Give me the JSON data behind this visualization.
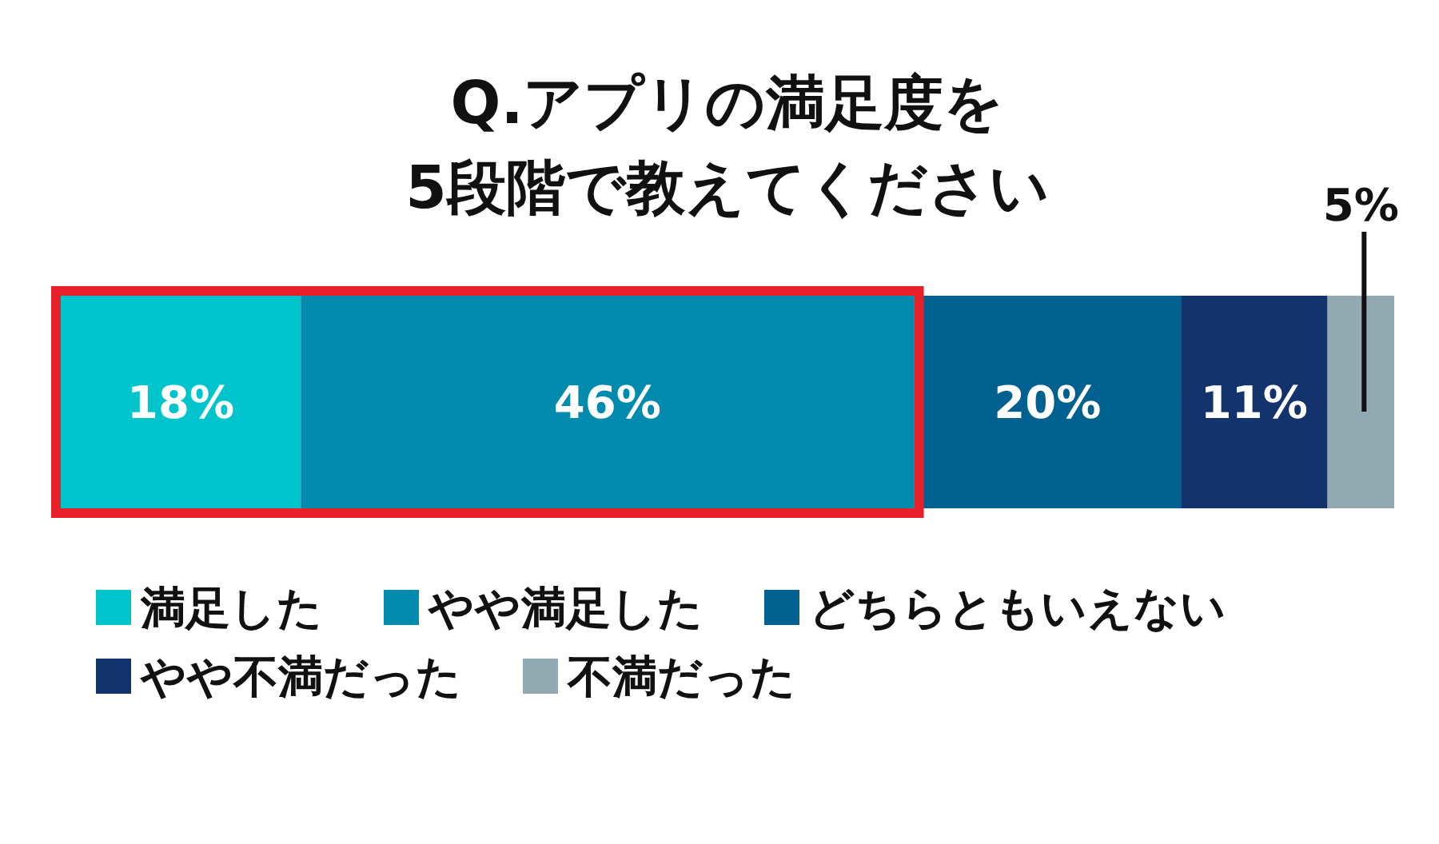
{
  "chart_data": {
    "type": "bar",
    "title": "Q.アプリの満足度を\n5段階で教えてください",
    "orientation": "horizontal",
    "stacked": true,
    "categories": [
      null
    ],
    "series": [
      {
        "name": "満足した",
        "color": "#00c4cc",
        "values": [
          18
        ],
        "value_labels": [
          "18%"
        ]
      },
      {
        "name": "やや満足した",
        "color": "#008aae",
        "values": [
          46
        ],
        "value_labels": [
          "46%"
        ]
      },
      {
        "name": "どちらともいえない",
        "color": "#006090",
        "values": [
          20
        ],
        "value_labels": [
          "20%"
        ]
      },
      {
        "name": "やや不満だった",
        "color": "#12336b",
        "values": [
          11
        ],
        "value_labels": [
          "11%"
        ]
      },
      {
        "name": "不満だった",
        "color": "#91a9b0",
        "values": [
          5
        ],
        "value_labels": [
          "5%"
        ]
      }
    ],
    "legend": "bottom"
  }
}
